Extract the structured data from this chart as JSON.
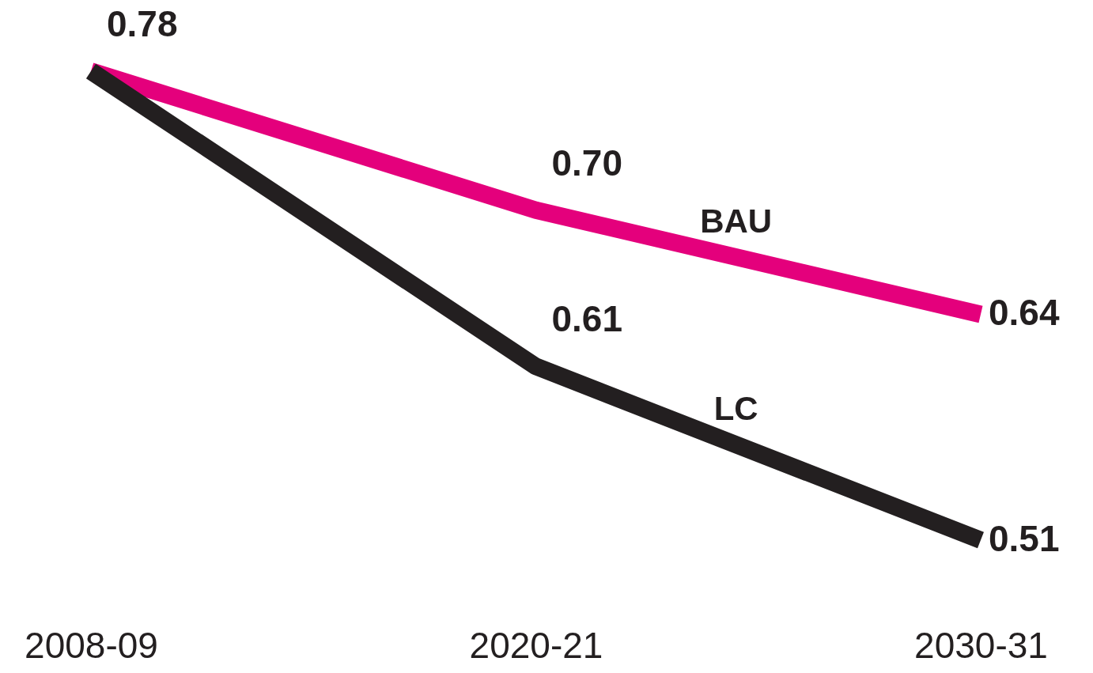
{
  "chart_data": {
    "type": "line",
    "categories": [
      "2008-09",
      "2020-21",
      "2030-31"
    ],
    "series": [
      {
        "name": "BAU",
        "color": "#e4007c",
        "values": [
          0.78,
          0.7,
          0.64
        ],
        "value_labels": [
          "0.78",
          "0.70",
          "0.64"
        ]
      },
      {
        "name": "LC",
        "color": "#231f20",
        "values": [
          0.78,
          0.61,
          0.51
        ],
        "value_labels": [
          null,
          "0.61",
          "0.51"
        ]
      }
    ]
  }
}
